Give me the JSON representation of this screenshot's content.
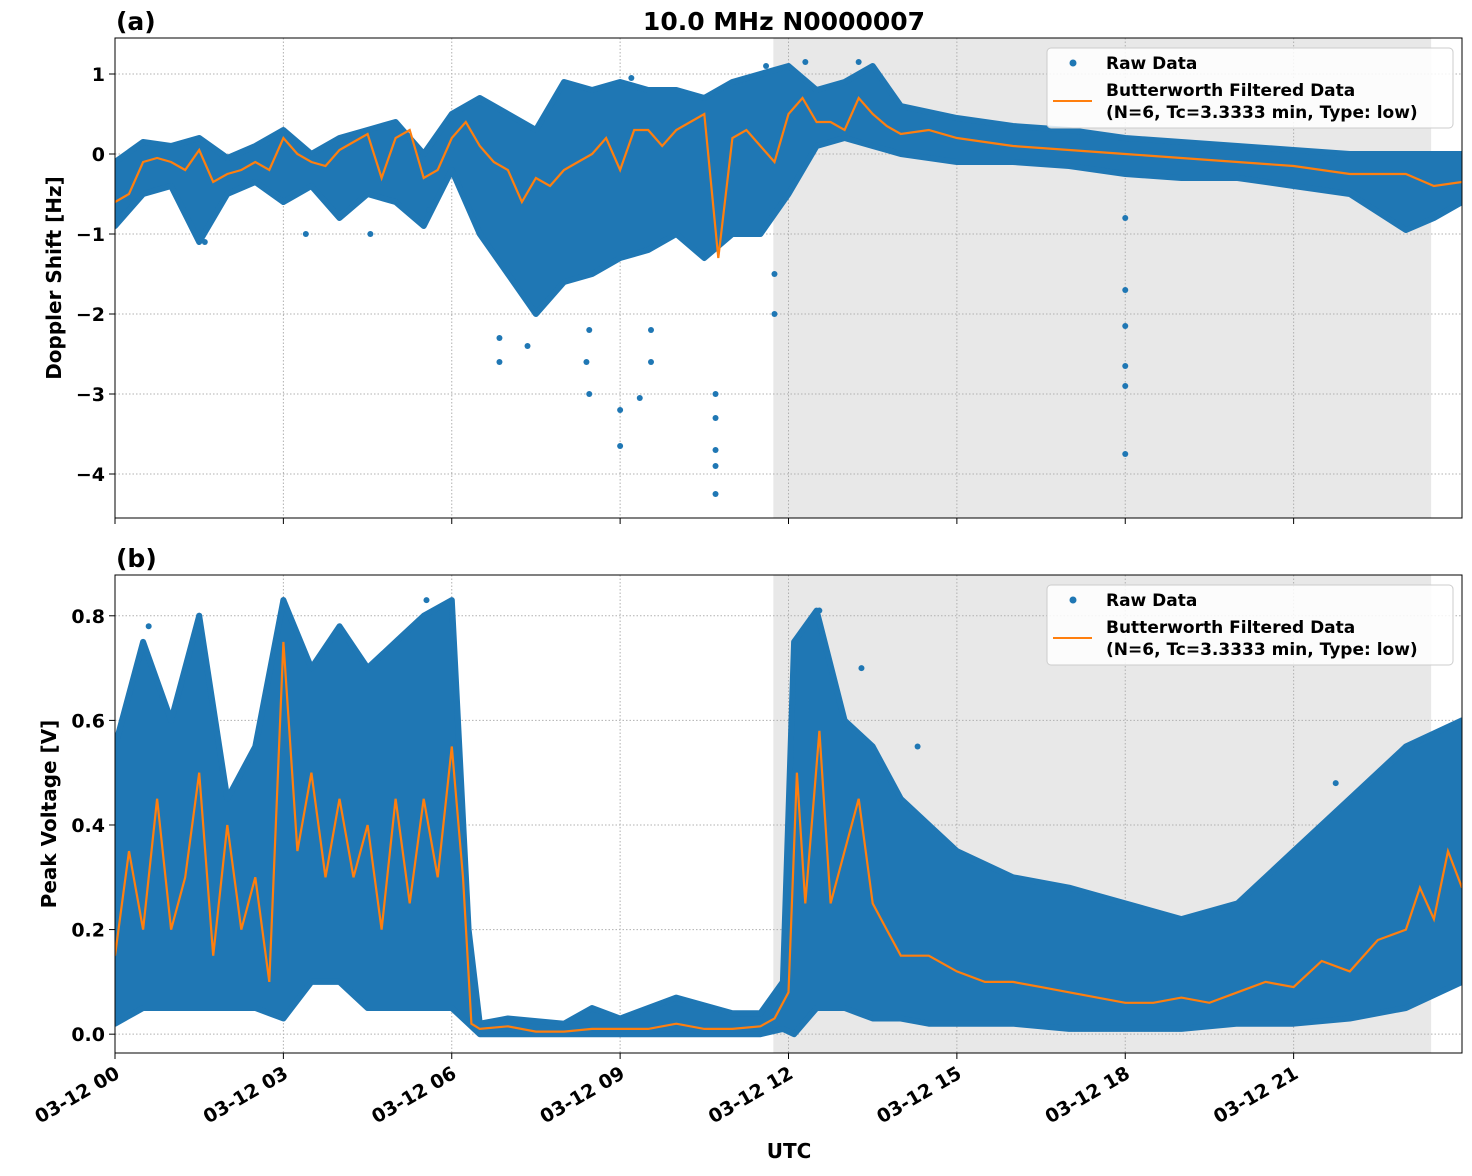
{
  "title": "10.0 MHz N0000007",
  "xlabel": "UTC",
  "x_tick_labels": [
    "03-12 00",
    "03-12 03",
    "03-12 06",
    "03-12 09",
    "03-12 12",
    "03-12 15",
    "03-12 18",
    "03-12 21"
  ],
  "x_ticks_hours": [
    0,
    3,
    6,
    9,
    12,
    15,
    18,
    21
  ],
  "xlim_hours": [
    0,
    24
  ],
  "shaded_interval_hours": [
    11.73,
    23.45
  ],
  "colors": {
    "raw": "#1f77b4",
    "filtered": "#ff7f0e",
    "shade": "#e8e8e8",
    "grid": "#b0b0b0"
  },
  "chart_data": [
    {
      "type": "scatter+line",
      "panel_label": "(a)",
      "ylabel": "Doppler Shift [Hz]",
      "ylim": [
        -4.55,
        1.45
      ],
      "y_ticks": [
        1,
        0,
        -1,
        -2,
        -3,
        -4
      ],
      "y_tick_labels": [
        "1",
        "0",
        "−1",
        "−2",
        "−3",
        "−4"
      ],
      "grid": true,
      "legend": {
        "placement": "top-right",
        "raw_label": "Raw Data",
        "filtered_label_line1": "Butterworth Filtered Data",
        "filtered_label_line2": "(N=6, Tc=3.3333 min, Type: low)"
      },
      "raw_envelope": [
        [
          0,
          -0.9,
          -0.1
        ],
        [
          0.5,
          -0.5,
          0.15
        ],
        [
          1,
          -0.4,
          0.1
        ],
        [
          1.5,
          -1.1,
          0.2
        ],
        [
          2,
          -0.5,
          -0.05
        ],
        [
          2.5,
          -0.35,
          0.1
        ],
        [
          3,
          -0.6,
          0.3
        ],
        [
          3.5,
          -0.4,
          0.0
        ],
        [
          4,
          -0.8,
          0.2
        ],
        [
          4.5,
          -0.5,
          0.3
        ],
        [
          5,
          -0.6,
          0.4
        ],
        [
          5.5,
          -0.9,
          0.0
        ],
        [
          6,
          -0.2,
          0.5
        ],
        [
          6.5,
          -1.0,
          0.7
        ],
        [
          7,
          -1.5,
          0.5
        ],
        [
          7.5,
          -2.0,
          0.3
        ],
        [
          8,
          -1.6,
          0.9
        ],
        [
          8.5,
          -1.5,
          0.8
        ],
        [
          9,
          -1.3,
          0.9
        ],
        [
          9.5,
          -1.2,
          0.8
        ],
        [
          10,
          -1.0,
          0.8
        ],
        [
          10.5,
          -1.3,
          0.7
        ],
        [
          11,
          -1.0,
          0.9
        ],
        [
          11.5,
          -1.0,
          1.0
        ],
        [
          12,
          -0.5,
          1.1
        ],
        [
          12.5,
          0.1,
          0.8
        ],
        [
          13,
          0.2,
          0.9
        ],
        [
          13.5,
          0.1,
          1.1
        ],
        [
          14,
          0.0,
          0.6
        ],
        [
          15,
          -0.1,
          0.45
        ],
        [
          16,
          -0.1,
          0.35
        ],
        [
          17,
          -0.15,
          0.3
        ],
        [
          18,
          -0.25,
          0.2
        ],
        [
          19,
          -0.3,
          0.15
        ],
        [
          20,
          -0.3,
          0.1
        ],
        [
          21,
          -0.4,
          0.05
        ],
        [
          22,
          -0.5,
          0.0
        ],
        [
          23,
          -0.95,
          0.0
        ],
        [
          23.5,
          -0.8,
          0.0
        ],
        [
          24,
          -0.6,
          0.0
        ]
      ],
      "raw_outliers": [
        [
          1.6,
          -1.1
        ],
        [
          3.4,
          -1.0
        ],
        [
          4.55,
          -1.0
        ],
        [
          5.6,
          -0.7
        ],
        [
          6.85,
          -2.6
        ],
        [
          6.85,
          -2.3
        ],
        [
          7.35,
          -2.4
        ],
        [
          8.4,
          -2.6
        ],
        [
          8.45,
          -3.0
        ],
        [
          8.45,
          -2.2
        ],
        [
          9.0,
          -3.65
        ],
        [
          9.0,
          -3.2
        ],
        [
          9.35,
          -3.05
        ],
        [
          9.55,
          -2.6
        ],
        [
          9.55,
          -2.2
        ],
        [
          10.7,
          -4.25
        ],
        [
          10.7,
          -3.9
        ],
        [
          10.7,
          -3.7
        ],
        [
          10.7,
          -3.3
        ],
        [
          10.7,
          -3.0
        ],
        [
          11.75,
          -2.0
        ],
        [
          11.75,
          -1.5
        ],
        [
          18.0,
          -0.8
        ],
        [
          18.0,
          -1.7
        ],
        [
          18.0,
          -2.15
        ],
        [
          18.0,
          -2.65
        ],
        [
          18.0,
          -2.9
        ],
        [
          18.0,
          -3.75
        ],
        [
          12.3,
          1.15
        ],
        [
          13.25,
          1.15
        ],
        [
          11.6,
          1.1
        ],
        [
          9.2,
          0.95
        ]
      ],
      "filtered": [
        [
          0,
          -0.6
        ],
        [
          0.25,
          -0.5
        ],
        [
          0.5,
          -0.1
        ],
        [
          0.75,
          -0.05
        ],
        [
          1,
          -0.1
        ],
        [
          1.25,
          -0.2
        ],
        [
          1.5,
          0.05
        ],
        [
          1.75,
          -0.35
        ],
        [
          2,
          -0.25
        ],
        [
          2.25,
          -0.2
        ],
        [
          2.5,
          -0.1
        ],
        [
          2.75,
          -0.2
        ],
        [
          3,
          0.2
        ],
        [
          3.25,
          0.0
        ],
        [
          3.5,
          -0.1
        ],
        [
          3.75,
          -0.15
        ],
        [
          4,
          0.05
        ],
        [
          4.25,
          0.15
        ],
        [
          4.5,
          0.25
        ],
        [
          4.75,
          -0.3
        ],
        [
          5,
          0.2
        ],
        [
          5.25,
          0.3
        ],
        [
          5.5,
          -0.3
        ],
        [
          5.75,
          -0.2
        ],
        [
          6,
          0.2
        ],
        [
          6.25,
          0.4
        ],
        [
          6.5,
          0.1
        ],
        [
          6.75,
          -0.1
        ],
        [
          7,
          -0.2
        ],
        [
          7.25,
          -0.6
        ],
        [
          7.5,
          -0.3
        ],
        [
          7.75,
          -0.4
        ],
        [
          8,
          -0.2
        ],
        [
          8.25,
          -0.1
        ],
        [
          8.5,
          0.0
        ],
        [
          8.75,
          0.2
        ],
        [
          9,
          -0.2
        ],
        [
          9.25,
          0.3
        ],
        [
          9.5,
          0.3
        ],
        [
          9.75,
          0.1
        ],
        [
          10,
          0.3
        ],
        [
          10.25,
          0.4
        ],
        [
          10.5,
          0.5
        ],
        [
          10.75,
          -1.3
        ],
        [
          11,
          0.2
        ],
        [
          11.25,
          0.3
        ],
        [
          11.5,
          0.1
        ],
        [
          11.75,
          -0.1
        ],
        [
          12,
          0.5
        ],
        [
          12.25,
          0.7
        ],
        [
          12.5,
          0.4
        ],
        [
          12.75,
          0.4
        ],
        [
          13,
          0.3
        ],
        [
          13.25,
          0.7
        ],
        [
          13.5,
          0.5
        ],
        [
          13.75,
          0.35
        ],
        [
          14,
          0.25
        ],
        [
          14.5,
          0.3
        ],
        [
          15,
          0.2
        ],
        [
          16,
          0.1
        ],
        [
          17,
          0.05
        ],
        [
          18,
          0.0
        ],
        [
          19,
          -0.05
        ],
        [
          20,
          -0.1
        ],
        [
          21,
          -0.15
        ],
        [
          22,
          -0.25
        ],
        [
          23,
          -0.25
        ],
        [
          23.5,
          -0.4
        ],
        [
          24,
          -0.35
        ]
      ]
    },
    {
      "type": "scatter+line",
      "panel_label": "(b)",
      "ylabel": "Peak Voltage [V]",
      "ylim": [
        -0.036,
        0.878
      ],
      "y_ticks": [
        0.8,
        0.6,
        0.4,
        0.2,
        0.0
      ],
      "y_tick_labels": [
        "0.8",
        "0.6",
        "0.4",
        "0.2",
        "0.0"
      ],
      "grid": true,
      "legend": {
        "placement": "top-right",
        "raw_label": "Raw Data",
        "filtered_label_line1": "Butterworth Filtered Data",
        "filtered_label_line2": "(N=6, Tc=3.3333 min, Type: low)"
      },
      "raw_envelope": [
        [
          0,
          0.02,
          0.55
        ],
        [
          0.5,
          0.05,
          0.75
        ],
        [
          1,
          0.05,
          0.6
        ],
        [
          1.5,
          0.05,
          0.8
        ],
        [
          2,
          0.05,
          0.45
        ],
        [
          2.5,
          0.05,
          0.55
        ],
        [
          3,
          0.03,
          0.83
        ],
        [
          3.5,
          0.1,
          0.7
        ],
        [
          4,
          0.1,
          0.78
        ],
        [
          4.5,
          0.05,
          0.7
        ],
        [
          5,
          0.05,
          0.75
        ],
        [
          5.5,
          0.05,
          0.8
        ],
        [
          6,
          0.05,
          0.83
        ],
        [
          6.3,
          0.02,
          0.2
        ],
        [
          6.5,
          0.0,
          0.02
        ],
        [
          7,
          0.0,
          0.03
        ],
        [
          8,
          0.0,
          0.02
        ],
        [
          8.5,
          0.0,
          0.05
        ],
        [
          9,
          0.0,
          0.03
        ],
        [
          10,
          0.0,
          0.07
        ],
        [
          11,
          0.0,
          0.04
        ],
        [
          11.5,
          0.0,
          0.04
        ],
        [
          11.9,
          0.01,
          0.1
        ],
        [
          12.1,
          0.0,
          0.75
        ],
        [
          12.5,
          0.05,
          0.81
        ],
        [
          13,
          0.05,
          0.6
        ],
        [
          13.5,
          0.03,
          0.55
        ],
        [
          14,
          0.03,
          0.45
        ],
        [
          14.5,
          0.02,
          0.4
        ],
        [
          15,
          0.02,
          0.35
        ],
        [
          16,
          0.02,
          0.3
        ],
        [
          17,
          0.01,
          0.28
        ],
        [
          18,
          0.01,
          0.25
        ],
        [
          19,
          0.01,
          0.22
        ],
        [
          20,
          0.02,
          0.25
        ],
        [
          21,
          0.02,
          0.35
        ],
        [
          22,
          0.03,
          0.45
        ],
        [
          23,
          0.05,
          0.55
        ],
        [
          24,
          0.1,
          0.6
        ]
      ],
      "raw_outliers": [
        [
          0.6,
          0.78
        ],
        [
          1.5,
          0.8
        ],
        [
          3.0,
          0.83
        ],
        [
          5.55,
          0.83
        ],
        [
          12.55,
          0.81
        ],
        [
          13.3,
          0.7
        ],
        [
          14.3,
          0.55
        ],
        [
          21.75,
          0.48
        ],
        [
          23.1,
          0.55
        ]
      ],
      "filtered": [
        [
          0,
          0.15
        ],
        [
          0.25,
          0.35
        ],
        [
          0.5,
          0.2
        ],
        [
          0.75,
          0.45
        ],
        [
          1,
          0.2
        ],
        [
          1.25,
          0.3
        ],
        [
          1.5,
          0.5
        ],
        [
          1.75,
          0.15
        ],
        [
          2,
          0.4
        ],
        [
          2.25,
          0.2
        ],
        [
          2.5,
          0.3
        ],
        [
          2.75,
          0.1
        ],
        [
          3,
          0.75
        ],
        [
          3.25,
          0.35
        ],
        [
          3.5,
          0.5
        ],
        [
          3.75,
          0.3
        ],
        [
          4,
          0.45
        ],
        [
          4.25,
          0.3
        ],
        [
          4.5,
          0.4
        ],
        [
          4.75,
          0.2
        ],
        [
          5,
          0.45
        ],
        [
          5.25,
          0.25
        ],
        [
          5.5,
          0.45
        ],
        [
          5.75,
          0.3
        ],
        [
          6,
          0.55
        ],
        [
          6.2,
          0.3
        ],
        [
          6.35,
          0.02
        ],
        [
          6.5,
          0.01
        ],
        [
          7,
          0.015
        ],
        [
          7.5,
          0.005
        ],
        [
          8,
          0.005
        ],
        [
          8.5,
          0.01
        ],
        [
          9,
          0.01
        ],
        [
          9.5,
          0.01
        ],
        [
          10,
          0.02
        ],
        [
          10.5,
          0.01
        ],
        [
          11,
          0.01
        ],
        [
          11.5,
          0.015
        ],
        [
          11.75,
          0.03
        ],
        [
          12,
          0.08
        ],
        [
          12.15,
          0.5
        ],
        [
          12.3,
          0.25
        ],
        [
          12.55,
          0.58
        ],
        [
          12.75,
          0.25
        ],
        [
          13,
          0.35
        ],
        [
          13.25,
          0.45
        ],
        [
          13.5,
          0.25
        ],
        [
          13.75,
          0.2
        ],
        [
          14,
          0.15
        ],
        [
          14.5,
          0.15
        ],
        [
          15,
          0.12
        ],
        [
          15.5,
          0.1
        ],
        [
          16,
          0.1
        ],
        [
          16.5,
          0.09
        ],
        [
          17,
          0.08
        ],
        [
          17.5,
          0.07
        ],
        [
          18,
          0.06
        ],
        [
          18.5,
          0.06
        ],
        [
          19,
          0.07
        ],
        [
          19.5,
          0.06
        ],
        [
          20,
          0.08
        ],
        [
          20.5,
          0.1
        ],
        [
          21,
          0.09
        ],
        [
          21.5,
          0.14
        ],
        [
          22,
          0.12
        ],
        [
          22.5,
          0.18
        ],
        [
          23,
          0.2
        ],
        [
          23.25,
          0.28
        ],
        [
          23.5,
          0.22
        ],
        [
          23.75,
          0.35
        ],
        [
          24,
          0.28
        ]
      ]
    }
  ]
}
